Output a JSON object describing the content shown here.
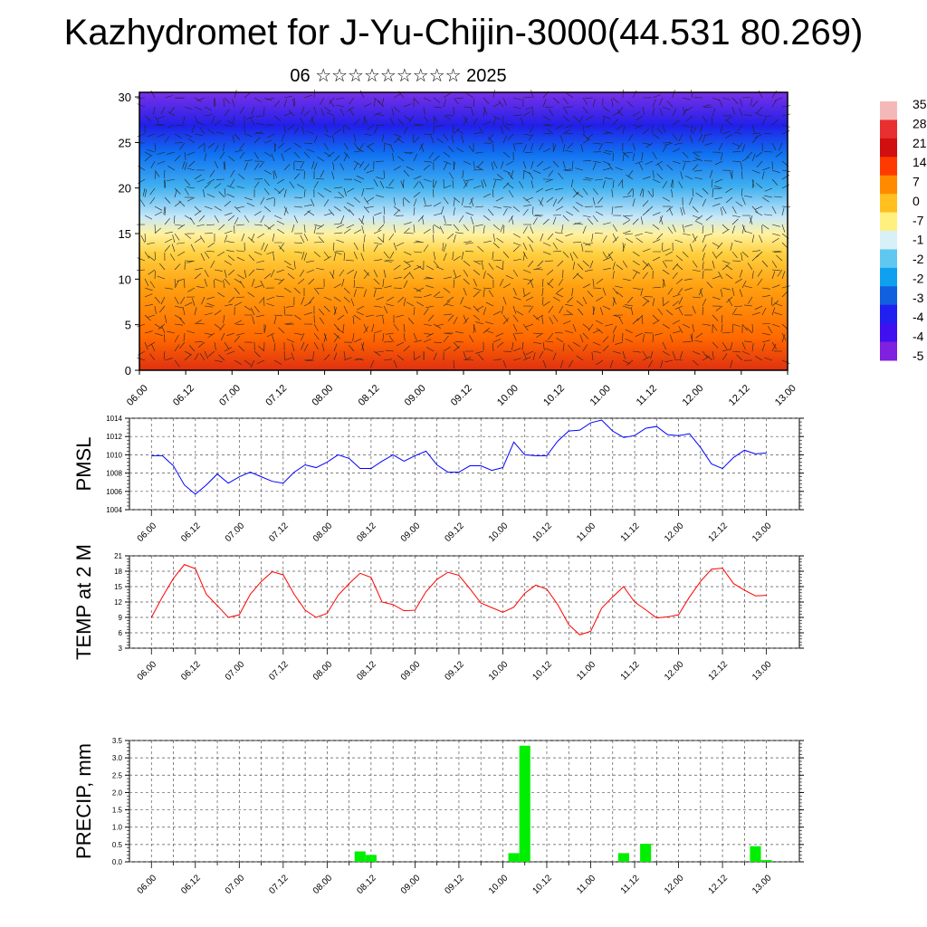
{
  "title": "Kazhydromet for J-Yu-Chijin-3000(44.531 80.269)",
  "subtitle": "06 ☆☆☆☆☆☆☆☆☆ 2025",
  "colors": {
    "pmsl_line": "#0000ff",
    "temp_line": "#ff0000",
    "precip_bar": "#00ee00",
    "grid": "#555555"
  },
  "chart_data": [
    {
      "type": "heatmap",
      "name": "",
      "x_tick_labels": [
        "06.00",
        "06.12",
        "07.00",
        "07.12",
        "08.00",
        "08.12",
        "09.00",
        "09.12",
        "10.00",
        "10.12",
        "11.00",
        "11.12",
        "12.00",
        "12.12",
        "13.00"
      ],
      "y_ticks": [
        0,
        5,
        10,
        15,
        20,
        25,
        30
      ],
      "ylim": [
        0,
        30.5
      ],
      "colorbar_labels": [
        "35",
        "28",
        "21",
        "14",
        "7",
        "0",
        "-7",
        "-1",
        "-2",
        "-2",
        "-3",
        "-4",
        "-4",
        "-5"
      ],
      "colorbar_colors": [
        "#f5b8b8",
        "#e83030",
        "#d01010",
        "#ff3a00",
        "#ff8a00",
        "#ffc020",
        "#fff080",
        "#d8f0f8",
        "#60c8f0",
        "#10a0f0",
        "#1060e0",
        "#2020f0",
        "#4010f0",
        "#8020e0"
      ],
      "overlay": "wind barbs"
    },
    {
      "type": "line",
      "ylabel": "PMSL",
      "ylim": [
        1004,
        1014
      ],
      "y_ticks": [
        1004,
        1006,
        1008,
        1010,
        1012,
        1014
      ],
      "x_tick_labels": [
        "06.00",
        "06.12",
        "07.00",
        "07.12",
        "08.00",
        "08.12",
        "09.00",
        "09.12",
        "10.00",
        "10.12",
        "11.00",
        "11.12",
        "12.00",
        "12.12",
        "13.00"
      ],
      "x_hours": [
        0,
        3,
        6,
        9,
        12,
        15,
        18,
        21,
        24,
        27,
        30,
        33,
        36,
        39,
        42,
        45,
        48,
        51,
        54,
        57,
        60,
        63,
        66,
        69,
        72,
        75,
        78,
        81,
        84,
        87,
        90,
        93,
        96,
        99,
        102,
        105,
        108,
        111,
        114,
        117,
        120,
        123,
        126,
        129,
        132,
        135,
        138,
        141,
        144,
        147,
        150,
        153,
        156,
        159,
        162,
        165,
        168
      ],
      "series": [
        {
          "values": [
            1009.9,
            1009.9,
            1008.8,
            1006.7,
            1005.7,
            1006.7,
            1007.9,
            1006.9,
            1007.6,
            1008.1,
            1007.6,
            1007.1,
            1006.9,
            1008.1,
            1008.9,
            1008.6,
            1009.2,
            1010.0,
            1009.6,
            1008.5,
            1008.5,
            1009.3,
            1010.0,
            1009.3,
            1009.9,
            1010.4,
            1008.9,
            1008.1,
            1008.1,
            1008.8,
            1008.8,
            1008.3,
            1008.6,
            1011.4,
            1010.0,
            1009.9,
            1009.9,
            1011.5,
            1012.6,
            1012.7,
            1013.5,
            1013.8,
            1012.6,
            1011.9,
            1012.1,
            1012.9,
            1013.1,
            1012.2,
            1012.1,
            1012.3,
            1010.8,
            1009.0,
            1008.5,
            1009.7,
            1010.5,
            1010.1,
            1010.2
          ]
        }
      ]
    },
    {
      "type": "line",
      "ylabel": "TEMP at 2 M",
      "ylim": [
        3,
        21
      ],
      "y_ticks": [
        3,
        6,
        9,
        12,
        15,
        18,
        21
      ],
      "x_tick_labels": [
        "06.00",
        "06.12",
        "07.00",
        "07.12",
        "08.00",
        "08.12",
        "09.00",
        "09.12",
        "10.00",
        "10.12",
        "11.00",
        "11.12",
        "12.00",
        "12.12",
        "13.00"
      ],
      "x_hours": [
        0,
        3,
        6,
        9,
        12,
        15,
        18,
        21,
        24,
        27,
        30,
        33,
        36,
        39,
        42,
        45,
        48,
        51,
        54,
        57,
        60,
        63,
        66,
        69,
        72,
        75,
        78,
        81,
        84,
        87,
        90,
        93,
        96,
        99,
        102,
        105,
        108,
        111,
        114,
        117,
        120,
        123,
        126,
        129,
        132,
        135,
        138,
        141,
        144,
        147,
        150,
        153,
        156,
        159,
        162,
        165,
        168
      ],
      "series": [
        {
          "values": [
            9.0,
            13.0,
            16.6,
            19.3,
            18.5,
            13.5,
            11.3,
            9.0,
            9.5,
            13.5,
            16.0,
            17.9,
            17.3,
            13.5,
            10.4,
            9.0,
            9.8,
            13.3,
            15.6,
            17.6,
            16.8,
            12.0,
            11.5,
            10.3,
            10.4,
            14.0,
            16.4,
            17.8,
            17.2,
            14.6,
            11.8,
            10.9,
            10.0,
            11.0,
            13.7,
            15.3,
            14.5,
            11.5,
            7.6,
            5.6,
            6.3,
            10.8,
            13.0,
            15.0,
            12.0,
            10.5,
            8.9,
            9.1,
            9.5,
            13.0,
            16.0,
            18.4,
            18.6,
            15.6,
            14.3,
            13.2,
            13.3
          ]
        }
      ]
    },
    {
      "type": "bar",
      "ylabel": "PRECIP, mm",
      "ylim": [
        0,
        3.5
      ],
      "y_ticks": [
        "0.0",
        "0.5",
        "1.0",
        "1.5",
        "2.0",
        "2.5",
        "3.0",
        "3.5"
      ],
      "x_tick_labels": [
        "06.00",
        "06.12",
        "07.00",
        "07.12",
        "08.00",
        "08.12",
        "09.00",
        "09.12",
        "10.00",
        "10.12",
        "11.00",
        "11.12",
        "12.00",
        "12.12",
        "13.00"
      ],
      "bars": [
        {
          "hour": 57,
          "value": 0.3
        },
        {
          "hour": 60,
          "value": 0.2
        },
        {
          "hour": 99,
          "value": 0.25
        },
        {
          "hour": 102,
          "value": 3.35
        },
        {
          "hour": 129,
          "value": 0.25
        },
        {
          "hour": 135,
          "value": 0.52
        },
        {
          "hour": 165,
          "value": 0.45
        },
        {
          "hour": 168,
          "value": 0.05
        }
      ]
    }
  ]
}
